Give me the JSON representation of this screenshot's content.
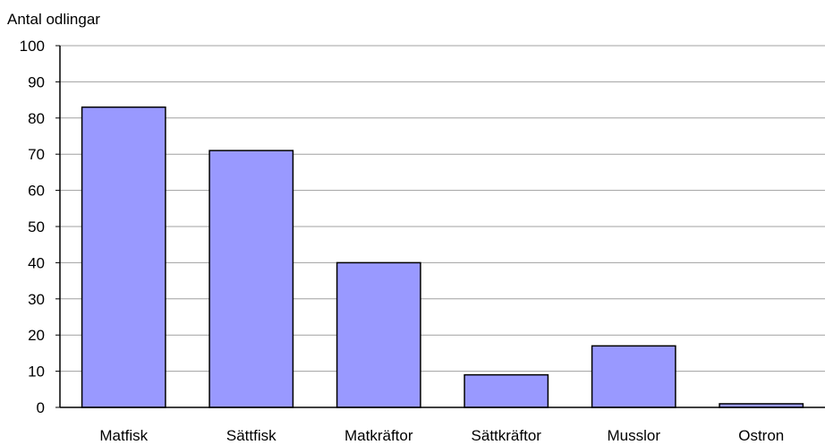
{
  "chart_data": {
    "type": "bar",
    "ylabel": "Antal odlingar",
    "xlabel": "",
    "categories": [
      "Matfisk",
      "Sättfisk",
      "Matkräftor",
      "Sättkräftor",
      "Musslor",
      "Ostron"
    ],
    "values": [
      83,
      71,
      40,
      9,
      17,
      1
    ],
    "ylim": [
      0,
      100
    ],
    "yticks": [
      0,
      10,
      20,
      30,
      40,
      50,
      60,
      70,
      80,
      90,
      100
    ],
    "grid": true,
    "legend": "none",
    "colors": {
      "bar": "#9999ff",
      "bar_stroke": "#000000",
      "grid": "#a0a0a0"
    }
  }
}
